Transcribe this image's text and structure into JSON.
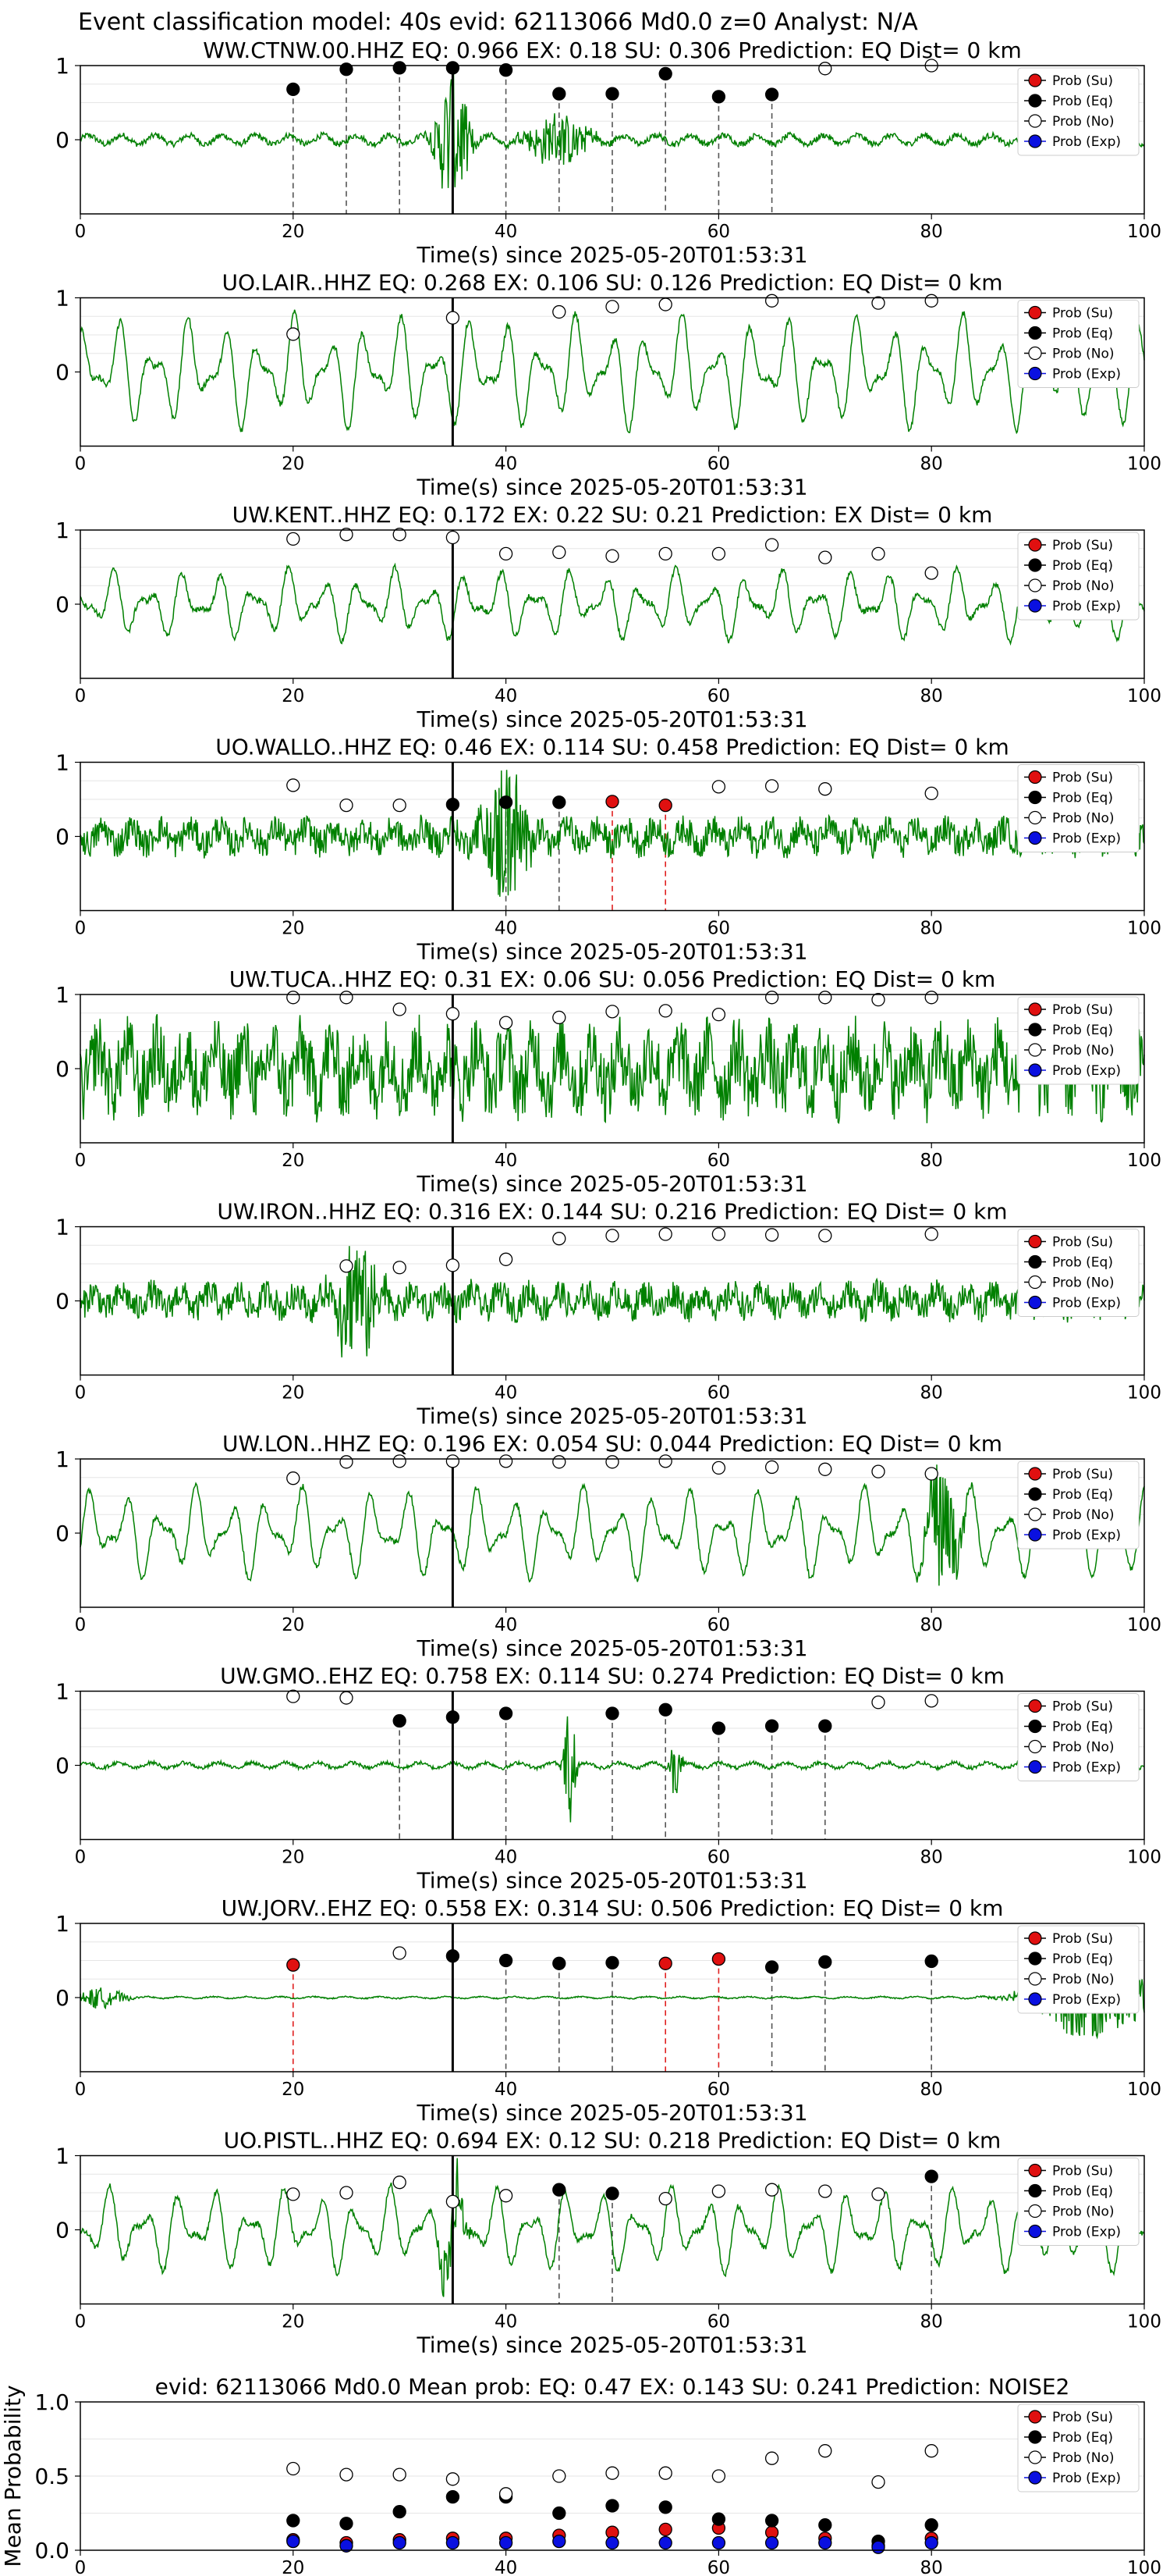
{
  "header": {
    "title": "Event classification model: 40s evid: 62113066 Md0.0 z=0 Analyst: N/A"
  },
  "legend_labels": [
    "Prob (Su)",
    "Prob (Eq)",
    "Prob (No)",
    "Prob (Exp)"
  ],
  "colors": {
    "waveform": "#008000",
    "su": "#e01010",
    "eq": "#000000",
    "no": "#ffffff",
    "exp": "#0a10e0",
    "eq_line": "#555555",
    "su_line": "#e02020",
    "origin_line": "#000000"
  },
  "chart_data": [
    {
      "type": "line",
      "title": "WW.CTNW.00.HHZ   EQ: 0.966  EX: 0.18  SU: 0.306   Prediction: EQ    Dist= 0 km",
      "xlabel": "Time(s) since 2025-05-20T01:53:31",
      "xlim": [
        0,
        100
      ],
      "ylim": [
        -1,
        1
      ],
      "x_ticks": [
        "0",
        "20",
        "40",
        "60",
        "80",
        "100"
      ],
      "y_ticks": [
        "1",
        "0"
      ],
      "origin_time": 35,
      "waveform": {
        "style": "quiet",
        "amp": 0.1,
        "events": [
          {
            "t": 35,
            "amp": 1.0,
            "width": 1.5
          },
          {
            "t": 45,
            "amp": 0.35,
            "width": 3
          }
        ]
      },
      "points": [
        {
          "t": 20,
          "p": 0.68,
          "cls": "eq"
        },
        {
          "t": 25,
          "p": 0.95,
          "cls": "eq"
        },
        {
          "t": 30,
          "p": 0.97,
          "cls": "eq"
        },
        {
          "t": 35,
          "p": 0.97,
          "cls": "eq"
        },
        {
          "t": 40,
          "p": 0.94,
          "cls": "eq"
        },
        {
          "t": 45,
          "p": 0.62,
          "cls": "eq"
        },
        {
          "t": 50,
          "p": 0.62,
          "cls": "eq"
        },
        {
          "t": 55,
          "p": 0.89,
          "cls": "eq"
        },
        {
          "t": 60,
          "p": 0.58,
          "cls": "eq"
        },
        {
          "t": 65,
          "p": 0.61,
          "cls": "eq"
        },
        {
          "t": 70,
          "p": 0.96,
          "cls": "no"
        },
        {
          "t": 80,
          "p": 1.0,
          "cls": "no"
        }
      ]
    },
    {
      "type": "line",
      "title": "UO.LAIR..HHZ   EQ: 0.268  EX: 0.106  SU: 0.126   Prediction: EQ    Dist= 0 km",
      "xlabel": "Time(s) since 2025-05-20T01:53:31",
      "xlim": [
        0,
        100
      ],
      "ylim": [
        -1,
        1
      ],
      "x_ticks": [
        "0",
        "20",
        "40",
        "60",
        "80",
        "100"
      ],
      "y_ticks": [
        "1",
        "0"
      ],
      "origin_time": 35,
      "waveform": {
        "style": "smooth",
        "amp": 0.8,
        "events": []
      },
      "points": [
        {
          "t": 20,
          "p": 0.51,
          "cls": "no"
        },
        {
          "t": 35,
          "p": 0.73,
          "cls": "no"
        },
        {
          "t": 45,
          "p": 0.81,
          "cls": "no"
        },
        {
          "t": 50,
          "p": 0.88,
          "cls": "no"
        },
        {
          "t": 55,
          "p": 0.91,
          "cls": "no"
        },
        {
          "t": 65,
          "p": 0.96,
          "cls": "no"
        },
        {
          "t": 75,
          "p": 0.93,
          "cls": "no"
        },
        {
          "t": 80,
          "p": 0.96,
          "cls": "no"
        }
      ]
    },
    {
      "type": "line",
      "title": "UW.KENT..HHZ   EQ: 0.172  EX: 0.22  SU: 0.21   Prediction: EX    Dist= 0 km",
      "xlabel": "Time(s) since 2025-05-20T01:53:31",
      "xlim": [
        0,
        100
      ],
      "ylim": [
        -1,
        1
      ],
      "x_ticks": [
        "0",
        "20",
        "40",
        "60",
        "80",
        "100"
      ],
      "y_ticks": [
        "1",
        "0"
      ],
      "origin_time": 35,
      "waveform": {
        "style": "smooth",
        "amp": 0.5,
        "events": []
      },
      "points": [
        {
          "t": 20,
          "p": 0.88,
          "cls": "no"
        },
        {
          "t": 25,
          "p": 0.94,
          "cls": "no"
        },
        {
          "t": 30,
          "p": 0.94,
          "cls": "no"
        },
        {
          "t": 35,
          "p": 0.9,
          "cls": "no"
        },
        {
          "t": 40,
          "p": 0.68,
          "cls": "no"
        },
        {
          "t": 45,
          "p": 0.7,
          "cls": "no"
        },
        {
          "t": 50,
          "p": 0.65,
          "cls": "no"
        },
        {
          "t": 55,
          "p": 0.68,
          "cls": "no"
        },
        {
          "t": 60,
          "p": 0.68,
          "cls": "no"
        },
        {
          "t": 65,
          "p": 0.8,
          "cls": "no"
        },
        {
          "t": 70,
          "p": 0.63,
          "cls": "no"
        },
        {
          "t": 75,
          "p": 0.68,
          "cls": "no"
        },
        {
          "t": 80,
          "p": 0.42,
          "cls": "no"
        }
      ]
    },
    {
      "type": "line",
      "title": "UO.WALLO..HHZ   EQ: 0.46  EX: 0.114  SU: 0.458   Prediction: EQ    Dist= 0 km",
      "xlabel": "Time(s) since 2025-05-20T01:53:31",
      "xlim": [
        0,
        100
      ],
      "ylim": [
        -1,
        1
      ],
      "x_ticks": [
        "0",
        "20",
        "40",
        "60",
        "80",
        "100"
      ],
      "y_ticks": [
        "1",
        "0"
      ],
      "origin_time": 35,
      "waveform": {
        "style": "noisy",
        "amp": 0.3,
        "events": [
          {
            "t": 40,
            "amp": 1.0,
            "width": 2
          }
        ]
      },
      "points": [
        {
          "t": 20,
          "p": 0.69,
          "cls": "no"
        },
        {
          "t": 25,
          "p": 0.42,
          "cls": "no"
        },
        {
          "t": 30,
          "p": 0.42,
          "cls": "no"
        },
        {
          "t": 35,
          "p": 0.43,
          "cls": "eq"
        },
        {
          "t": 40,
          "p": 0.46,
          "cls": "eq"
        },
        {
          "t": 45,
          "p": 0.46,
          "cls": "eq"
        },
        {
          "t": 50,
          "p": 0.47,
          "cls": "su"
        },
        {
          "t": 55,
          "p": 0.42,
          "cls": "su"
        },
        {
          "t": 60,
          "p": 0.67,
          "cls": "no"
        },
        {
          "t": 65,
          "p": 0.68,
          "cls": "no"
        },
        {
          "t": 70,
          "p": 0.64,
          "cls": "no"
        },
        {
          "t": 80,
          "p": 0.58,
          "cls": "no"
        }
      ]
    },
    {
      "type": "line",
      "title": "UW.TUCA..HHZ   EQ: 0.31  EX: 0.06  SU: 0.056   Prediction: EQ    Dist= 0 km",
      "xlabel": "Time(s) since 2025-05-20T01:53:31",
      "xlim": [
        0,
        100
      ],
      "ylim": [
        -1,
        1
      ],
      "x_ticks": [
        "0",
        "20",
        "40",
        "60",
        "80",
        "100"
      ],
      "y_ticks": [
        "1",
        "0"
      ],
      "origin_time": 35,
      "waveform": {
        "style": "noisy",
        "amp": 0.75,
        "events": []
      },
      "points": [
        {
          "t": 20,
          "p": 0.96,
          "cls": "no"
        },
        {
          "t": 25,
          "p": 0.96,
          "cls": "no"
        },
        {
          "t": 30,
          "p": 0.8,
          "cls": "no"
        },
        {
          "t": 35,
          "p": 0.74,
          "cls": "no"
        },
        {
          "t": 40,
          "p": 0.62,
          "cls": "no"
        },
        {
          "t": 45,
          "p": 0.69,
          "cls": "no"
        },
        {
          "t": 50,
          "p": 0.77,
          "cls": "no"
        },
        {
          "t": 55,
          "p": 0.78,
          "cls": "no"
        },
        {
          "t": 60,
          "p": 0.73,
          "cls": "no"
        },
        {
          "t": 65,
          "p": 0.96,
          "cls": "no"
        },
        {
          "t": 70,
          "p": 0.96,
          "cls": "no"
        },
        {
          "t": 75,
          "p": 0.93,
          "cls": "no"
        },
        {
          "t": 80,
          "p": 0.96,
          "cls": "no"
        }
      ]
    },
    {
      "type": "line",
      "title": "UW.IRON..HHZ   EQ: 0.316  EX: 0.144  SU: 0.216   Prediction: EQ    Dist= 0 km",
      "xlabel": "Time(s) since 2025-05-20T01:53:31",
      "xlim": [
        0,
        100
      ],
      "ylim": [
        -1,
        1
      ],
      "x_ticks": [
        "0",
        "20",
        "40",
        "60",
        "80",
        "100"
      ],
      "y_ticks": [
        "1",
        "0"
      ],
      "origin_time": 35,
      "waveform": {
        "style": "noisy",
        "amp": 0.3,
        "events": [
          {
            "t": 26,
            "amp": 0.9,
            "width": 2
          }
        ]
      },
      "points": [
        {
          "t": 25,
          "p": 0.47,
          "cls": "no"
        },
        {
          "t": 30,
          "p": 0.45,
          "cls": "no"
        },
        {
          "t": 35,
          "p": 0.48,
          "cls": "no"
        },
        {
          "t": 40,
          "p": 0.56,
          "cls": "no"
        },
        {
          "t": 45,
          "p": 0.84,
          "cls": "no"
        },
        {
          "t": 50,
          "p": 0.88,
          "cls": "no"
        },
        {
          "t": 55,
          "p": 0.9,
          "cls": "no"
        },
        {
          "t": 60,
          "p": 0.9,
          "cls": "no"
        },
        {
          "t": 65,
          "p": 0.89,
          "cls": "no"
        },
        {
          "t": 70,
          "p": 0.88,
          "cls": "no"
        },
        {
          "t": 80,
          "p": 0.9,
          "cls": "no"
        }
      ]
    },
    {
      "type": "line",
      "title": "UW.LON..HHZ   EQ: 0.196  EX: 0.054  SU: 0.044   Prediction: EQ    Dist= 0 km",
      "xlabel": "Time(s) since 2025-05-20T01:53:31",
      "xlim": [
        0,
        100
      ],
      "ylim": [
        -1,
        1
      ],
      "x_ticks": [
        "0",
        "20",
        "40",
        "60",
        "80",
        "100"
      ],
      "y_ticks": [
        "1",
        "0"
      ],
      "origin_time": 35,
      "waveform": {
        "style": "smooth",
        "amp": 0.65,
        "events": [
          {
            "t": 81,
            "amp": 0.9,
            "width": 1.5
          }
        ]
      },
      "points": [
        {
          "t": 20,
          "p": 0.74,
          "cls": "no"
        },
        {
          "t": 25,
          "p": 0.96,
          "cls": "no"
        },
        {
          "t": 30,
          "p": 0.97,
          "cls": "no"
        },
        {
          "t": 35,
          "p": 0.97,
          "cls": "no"
        },
        {
          "t": 40,
          "p": 0.97,
          "cls": "no"
        },
        {
          "t": 45,
          "p": 0.96,
          "cls": "no"
        },
        {
          "t": 50,
          "p": 0.96,
          "cls": "no"
        },
        {
          "t": 55,
          "p": 0.97,
          "cls": "no"
        },
        {
          "t": 60,
          "p": 0.88,
          "cls": "no"
        },
        {
          "t": 65,
          "p": 0.89,
          "cls": "no"
        },
        {
          "t": 70,
          "p": 0.86,
          "cls": "no"
        },
        {
          "t": 75,
          "p": 0.83,
          "cls": "no"
        },
        {
          "t": 80,
          "p": 0.8,
          "cls": "no"
        }
      ]
    },
    {
      "type": "line",
      "title": "UW.GMO..EHZ   EQ: 0.758  EX: 0.114  SU: 0.274   Prediction: EQ    Dist= 0 km",
      "xlabel": "Time(s) since 2025-05-20T01:53:31",
      "xlim": [
        0,
        100
      ],
      "ylim": [
        -1,
        1
      ],
      "x_ticks": [
        "0",
        "20",
        "40",
        "60",
        "80",
        "100"
      ],
      "y_ticks": [
        "1",
        "0"
      ],
      "origin_time": 35,
      "waveform": {
        "style": "quiet",
        "amp": 0.06,
        "events": [
          {
            "t": 46,
            "amp": 1.0,
            "width": 0.5
          },
          {
            "t": 56,
            "amp": 0.5,
            "width": 0.5
          }
        ]
      },
      "points": [
        {
          "t": 20,
          "p": 0.93,
          "cls": "no"
        },
        {
          "t": 25,
          "p": 0.91,
          "cls": "no"
        },
        {
          "t": 30,
          "p": 0.6,
          "cls": "eq"
        },
        {
          "t": 35,
          "p": 0.65,
          "cls": "eq"
        },
        {
          "t": 40,
          "p": 0.7,
          "cls": "eq"
        },
        {
          "t": 50,
          "p": 0.7,
          "cls": "eq"
        },
        {
          "t": 55,
          "p": 0.75,
          "cls": "eq"
        },
        {
          "t": 60,
          "p": 0.5,
          "cls": "eq"
        },
        {
          "t": 65,
          "p": 0.53,
          "cls": "eq"
        },
        {
          "t": 70,
          "p": 0.53,
          "cls": "eq"
        },
        {
          "t": 75,
          "p": 0.85,
          "cls": "no"
        },
        {
          "t": 80,
          "p": 0.87,
          "cls": "no"
        }
      ]
    },
    {
      "type": "line",
      "title": "UW.JORV..EHZ   EQ: 0.558  EX: 0.314  SU: 0.506   Prediction: EQ    Dist= 0 km",
      "xlabel": "Time(s) since 2025-05-20T01:53:31",
      "xlim": [
        0,
        100
      ],
      "ylim": [
        -1,
        1
      ],
      "x_ticks": [
        "0",
        "20",
        "40",
        "60",
        "80",
        "100"
      ],
      "y_ticks": [
        "1",
        "0"
      ],
      "origin_time": 35,
      "waveform": {
        "style": "quiet",
        "amp": 0.02,
        "events": [
          {
            "t": 2,
            "amp": 0.15,
            "width": 2
          },
          {
            "t": 95,
            "amp": 0.6,
            "width": 5
          }
        ]
      },
      "points": [
        {
          "t": 20,
          "p": 0.44,
          "cls": "su"
        },
        {
          "t": 30,
          "p": 0.6,
          "cls": "no"
        },
        {
          "t": 35,
          "p": 0.56,
          "cls": "eq"
        },
        {
          "t": 40,
          "p": 0.5,
          "cls": "eq"
        },
        {
          "t": 45,
          "p": 0.46,
          "cls": "eq"
        },
        {
          "t": 50,
          "p": 0.47,
          "cls": "eq"
        },
        {
          "t": 55,
          "p": 0.46,
          "cls": "su"
        },
        {
          "t": 60,
          "p": 0.52,
          "cls": "su"
        },
        {
          "t": 65,
          "p": 0.41,
          "cls": "eq"
        },
        {
          "t": 70,
          "p": 0.48,
          "cls": "eq"
        },
        {
          "t": 80,
          "p": 0.49,
          "cls": "eq"
        }
      ]
    },
    {
      "type": "line",
      "title": "UO.PISTL..HHZ   EQ: 0.694  EX: 0.12  SU: 0.218   Prediction: EQ    Dist= 0 km",
      "xlabel": "Time(s) since 2025-05-20T01:53:31",
      "xlim": [
        0,
        100
      ],
      "ylim": [
        -1,
        1
      ],
      "x_ticks": [
        "0",
        "20",
        "40",
        "60",
        "80",
        "100"
      ],
      "y_ticks": [
        "1",
        "0"
      ],
      "origin_time": 35,
      "waveform": {
        "style": "smooth",
        "amp": 0.6,
        "events": [
          {
            "t": 35,
            "amp": 0.8,
            "width": 1
          }
        ]
      },
      "points": [
        {
          "t": 20,
          "p": 0.48,
          "cls": "no"
        },
        {
          "t": 25,
          "p": 0.5,
          "cls": "no"
        },
        {
          "t": 30,
          "p": 0.64,
          "cls": "no"
        },
        {
          "t": 35,
          "p": 0.38,
          "cls": "no"
        },
        {
          "t": 40,
          "p": 0.46,
          "cls": "no"
        },
        {
          "t": 45,
          "p": 0.54,
          "cls": "eq"
        },
        {
          "t": 50,
          "p": 0.49,
          "cls": "eq"
        },
        {
          "t": 55,
          "p": 0.42,
          "cls": "no"
        },
        {
          "t": 60,
          "p": 0.52,
          "cls": "no"
        },
        {
          "t": 65,
          "p": 0.54,
          "cls": "no"
        },
        {
          "t": 70,
          "p": 0.52,
          "cls": "no"
        },
        {
          "t": 75,
          "p": 0.48,
          "cls": "no"
        },
        {
          "t": 80,
          "p": 0.72,
          "cls": "eq"
        }
      ]
    },
    {
      "type": "scatter",
      "title": "evid: 62113066  Md0.0   Mean prob:   EQ: 0.47  EX: 0.143  SU: 0.241   Prediction: NOISE2",
      "ylabel": "Mean Probability",
      "xlim": [
        0,
        100
      ],
      "ylim": [
        0,
        1
      ],
      "x_ticks": [
        "0",
        "20",
        "40",
        "60",
        "80",
        "100"
      ],
      "y_ticks": [
        "0.0",
        "0.5",
        "1.0"
      ],
      "series": [
        {
          "name": "Prob (Su)",
          "cls": "su",
          "x": [
            20,
            25,
            30,
            35,
            40,
            45,
            50,
            55,
            60,
            65,
            70,
            75,
            80
          ],
          "y": [
            0.07,
            0.05,
            0.07,
            0.08,
            0.08,
            0.1,
            0.12,
            0.14,
            0.15,
            0.12,
            0.08,
            0.03,
            0.08
          ]
        },
        {
          "name": "Prob (Eq)",
          "cls": "eq",
          "x": [
            20,
            25,
            30,
            35,
            40,
            45,
            50,
            55,
            60,
            65,
            70,
            75,
            80
          ],
          "y": [
            0.2,
            0.18,
            0.26,
            0.36,
            0.36,
            0.25,
            0.3,
            0.29,
            0.21,
            0.2,
            0.17,
            0.06,
            0.17
          ]
        },
        {
          "name": "Prob (No)",
          "cls": "no",
          "x": [
            20,
            25,
            30,
            35,
            40,
            45,
            50,
            55,
            60,
            65,
            70,
            75,
            80
          ],
          "y": [
            0.55,
            0.51,
            0.51,
            0.48,
            0.38,
            0.5,
            0.52,
            0.52,
            0.5,
            0.62,
            0.67,
            0.46,
            0.67
          ]
        },
        {
          "name": "Prob (Exp)",
          "cls": "exp",
          "x": [
            20,
            25,
            30,
            35,
            40,
            45,
            50,
            55,
            60,
            65,
            70,
            75,
            80
          ],
          "y": [
            0.06,
            0.03,
            0.05,
            0.05,
            0.05,
            0.06,
            0.05,
            0.05,
            0.05,
            0.05,
            0.05,
            0.02,
            0.05
          ]
        }
      ]
    }
  ]
}
